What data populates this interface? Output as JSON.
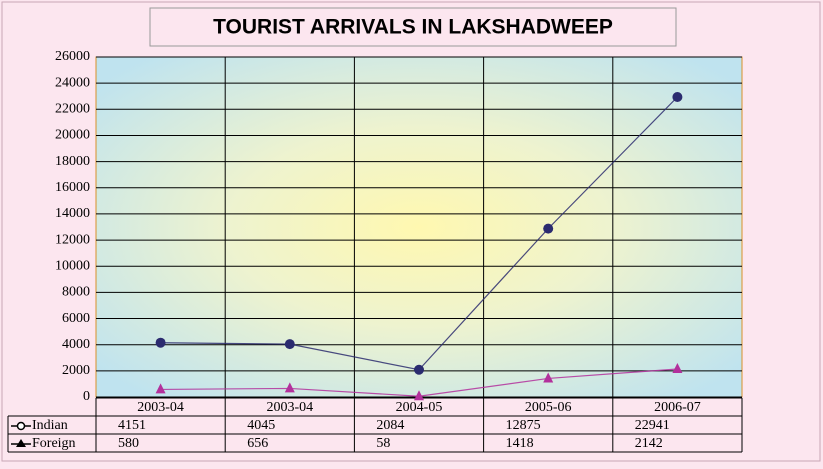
{
  "chart_data": {
    "type": "line",
    "title": "TOURIST ARRIVALS IN LAKSHADWEEP",
    "categories": [
      "2003-04",
      "2003-04",
      "2004-05",
      "2005-06",
      "2006-07"
    ],
    "series": [
      {
        "name": "Indian",
        "color": "#2b2b6f",
        "marker": "circle",
        "values": [
          4151,
          4045,
          2084,
          12875,
          22941
        ]
      },
      {
        "name": "Foreign",
        "color": "#b3309c",
        "marker": "triangle",
        "values": [
          580,
          656,
          58,
          1418,
          2142
        ]
      }
    ],
    "ylim": [
      0,
      26000
    ],
    "yticks": [
      0,
      2000,
      4000,
      6000,
      8000,
      10000,
      12000,
      14000,
      16000,
      18000,
      20000,
      22000,
      24000,
      26000
    ],
    "grid": true
  }
}
